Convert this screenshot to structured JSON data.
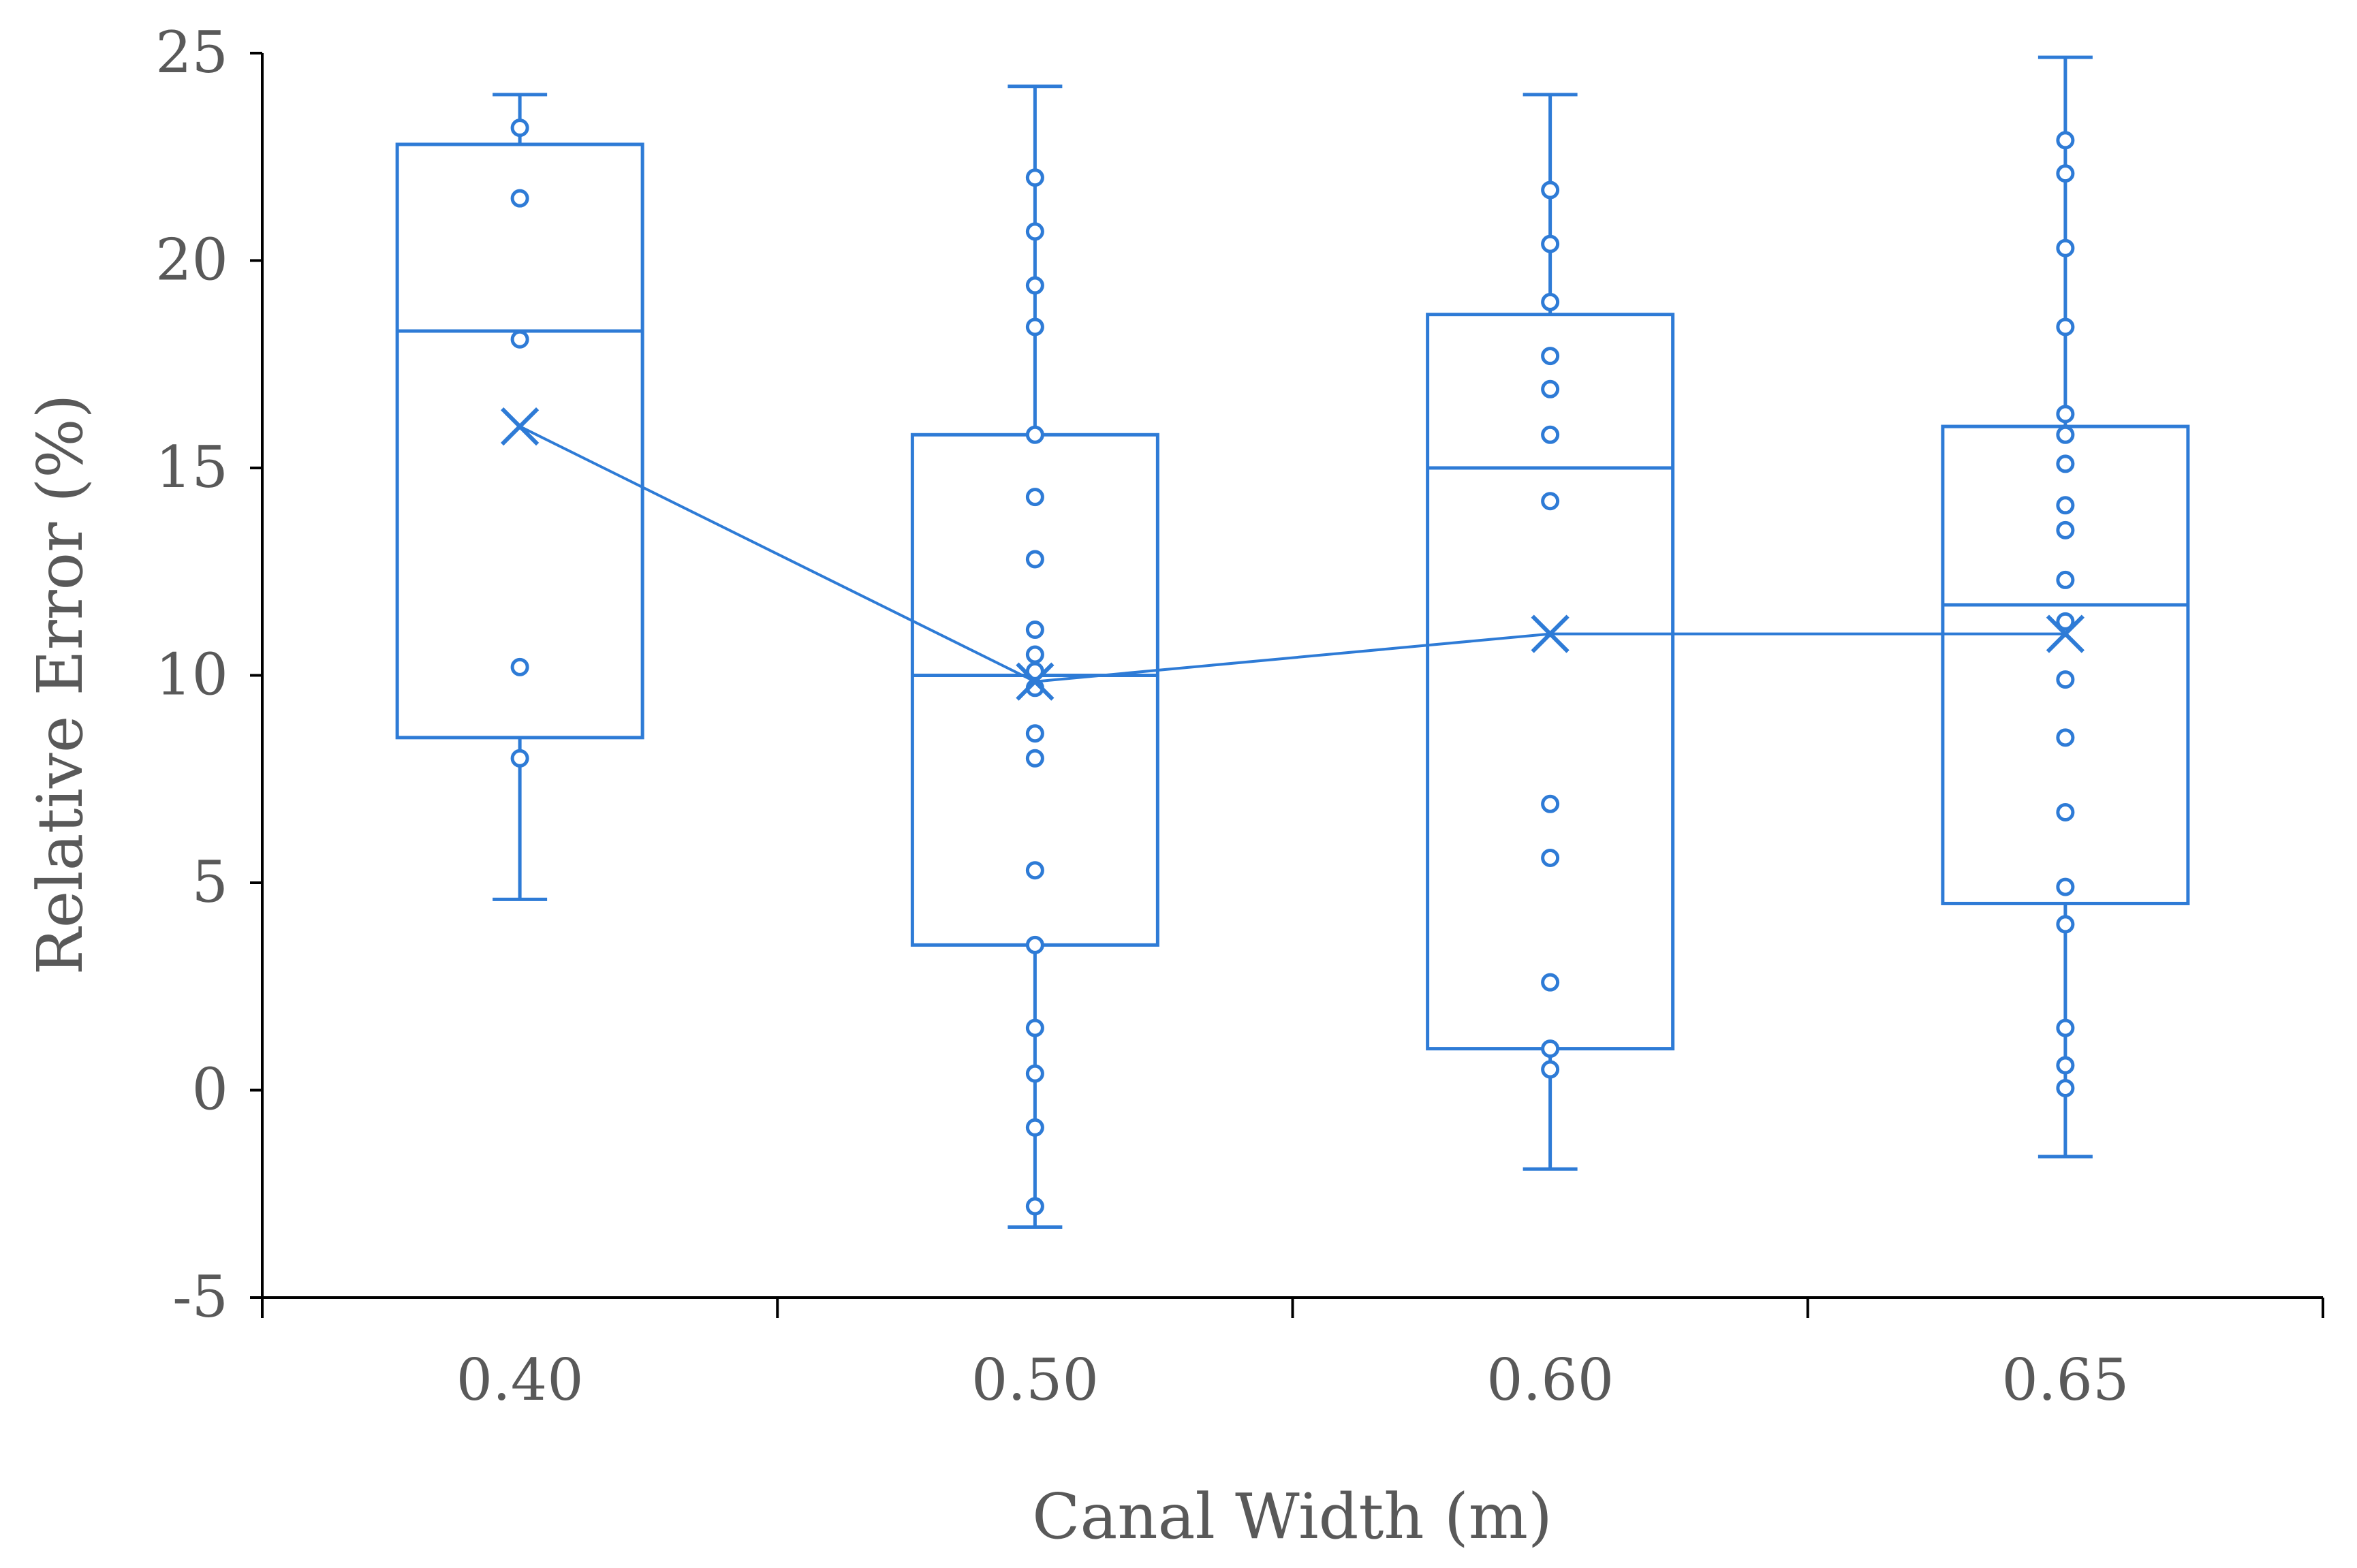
{
  "chart_data": {
    "type": "box",
    "title": "",
    "xlabel": "Canal Width (m)",
    "ylabel": "Relative Error (%)",
    "ylim": [
      -5,
      25
    ],
    "yticks": [
      -5,
      0,
      5,
      10,
      15,
      20,
      25
    ],
    "ytick_labels": [
      "-5",
      "0",
      "5",
      "10",
      "15",
      "20",
      "25"
    ],
    "categories": [
      "0.40",
      "0.50",
      "0.60",
      "0.65"
    ],
    "grid": false,
    "legend": "none",
    "color": "#2E7BD6",
    "show_mean_line": true,
    "boxes": [
      {
        "category": "0.40",
        "whisker_low": 4.6,
        "q1": 8.5,
        "median": 18.3,
        "q3": 22.8,
        "whisker_high": 24.0,
        "mean": 16.0,
        "points": [
          23.2,
          21.5,
          18.1,
          10.2,
          8.0
        ]
      },
      {
        "category": "0.50",
        "whisker_low": -3.3,
        "q1": 3.5,
        "median": 10.0,
        "q3": 15.8,
        "whisker_high": 24.2,
        "mean": 9.85,
        "points": [
          22.0,
          20.7,
          19.4,
          18.4,
          15.8,
          14.3,
          12.8,
          11.1,
          10.5,
          10.1,
          9.7,
          8.6,
          8.0,
          5.3,
          3.5,
          1.5,
          0.4,
          -0.9,
          -2.8
        ]
      },
      {
        "category": "0.60",
        "whisker_low": -1.9,
        "q1": 1.0,
        "median": 15.0,
        "q3": 18.7,
        "whisker_high": 24.0,
        "mean": 11.0,
        "points": [
          21.7,
          20.4,
          19.0,
          17.7,
          16.9,
          15.8,
          14.2,
          6.9,
          5.6,
          2.6,
          1.0,
          0.5
        ]
      },
      {
        "category": "0.65",
        "whisker_low": -1.6,
        "q1": 4.5,
        "median": 11.7,
        "q3": 16.0,
        "whisker_high": 24.9,
        "mean": 11.0,
        "points": [
          22.9,
          22.1,
          20.3,
          18.4,
          16.3,
          15.8,
          15.1,
          14.1,
          13.5,
          12.3,
          11.3,
          9.9,
          8.5,
          6.7,
          4.9,
          4.0,
          1.5,
          0.6,
          0.05
        ]
      }
    ]
  }
}
